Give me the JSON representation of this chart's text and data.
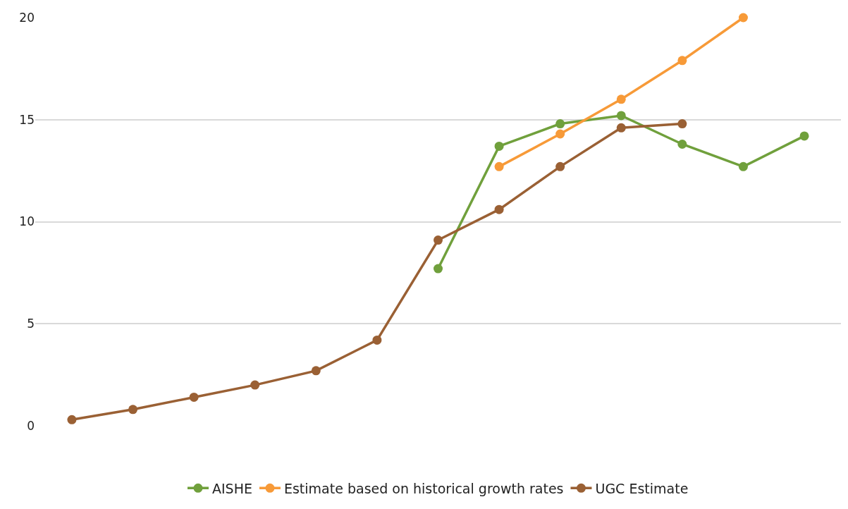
{
  "chart_data": {
    "type": "line",
    "categories": [
      null,
      null,
      null,
      null,
      null,
      null,
      null,
      null,
      null,
      null,
      null,
      null,
      null
    ],
    "series": [
      {
        "name": "AISHE",
        "color": "#70a03c",
        "values": [
          null,
          null,
          null,
          null,
          null,
          null,
          7.7,
          13.7,
          14.8,
          15.2,
          13.8,
          12.7,
          14.2
        ]
      },
      {
        "name": "Estimate based on historical growth rates",
        "color": "#f79a38",
        "values": [
          null,
          null,
          null,
          null,
          null,
          null,
          null,
          12.7,
          14.3,
          16.0,
          17.9,
          20.0,
          null
        ]
      },
      {
        "name": "UGC Estimate",
        "color": "#9a6034",
        "values": [
          0.3,
          0.8,
          1.4,
          2.0,
          2.7,
          4.2,
          9.1,
          10.6,
          12.7,
          14.6,
          14.8,
          null,
          null
        ]
      }
    ],
    "ylim": [
      0,
      20
    ],
    "yticks": [
      0,
      5,
      10,
      15,
      20
    ],
    "grid": "y",
    "legend": "bottom",
    "marker": "circle",
    "line_style": "solid"
  }
}
